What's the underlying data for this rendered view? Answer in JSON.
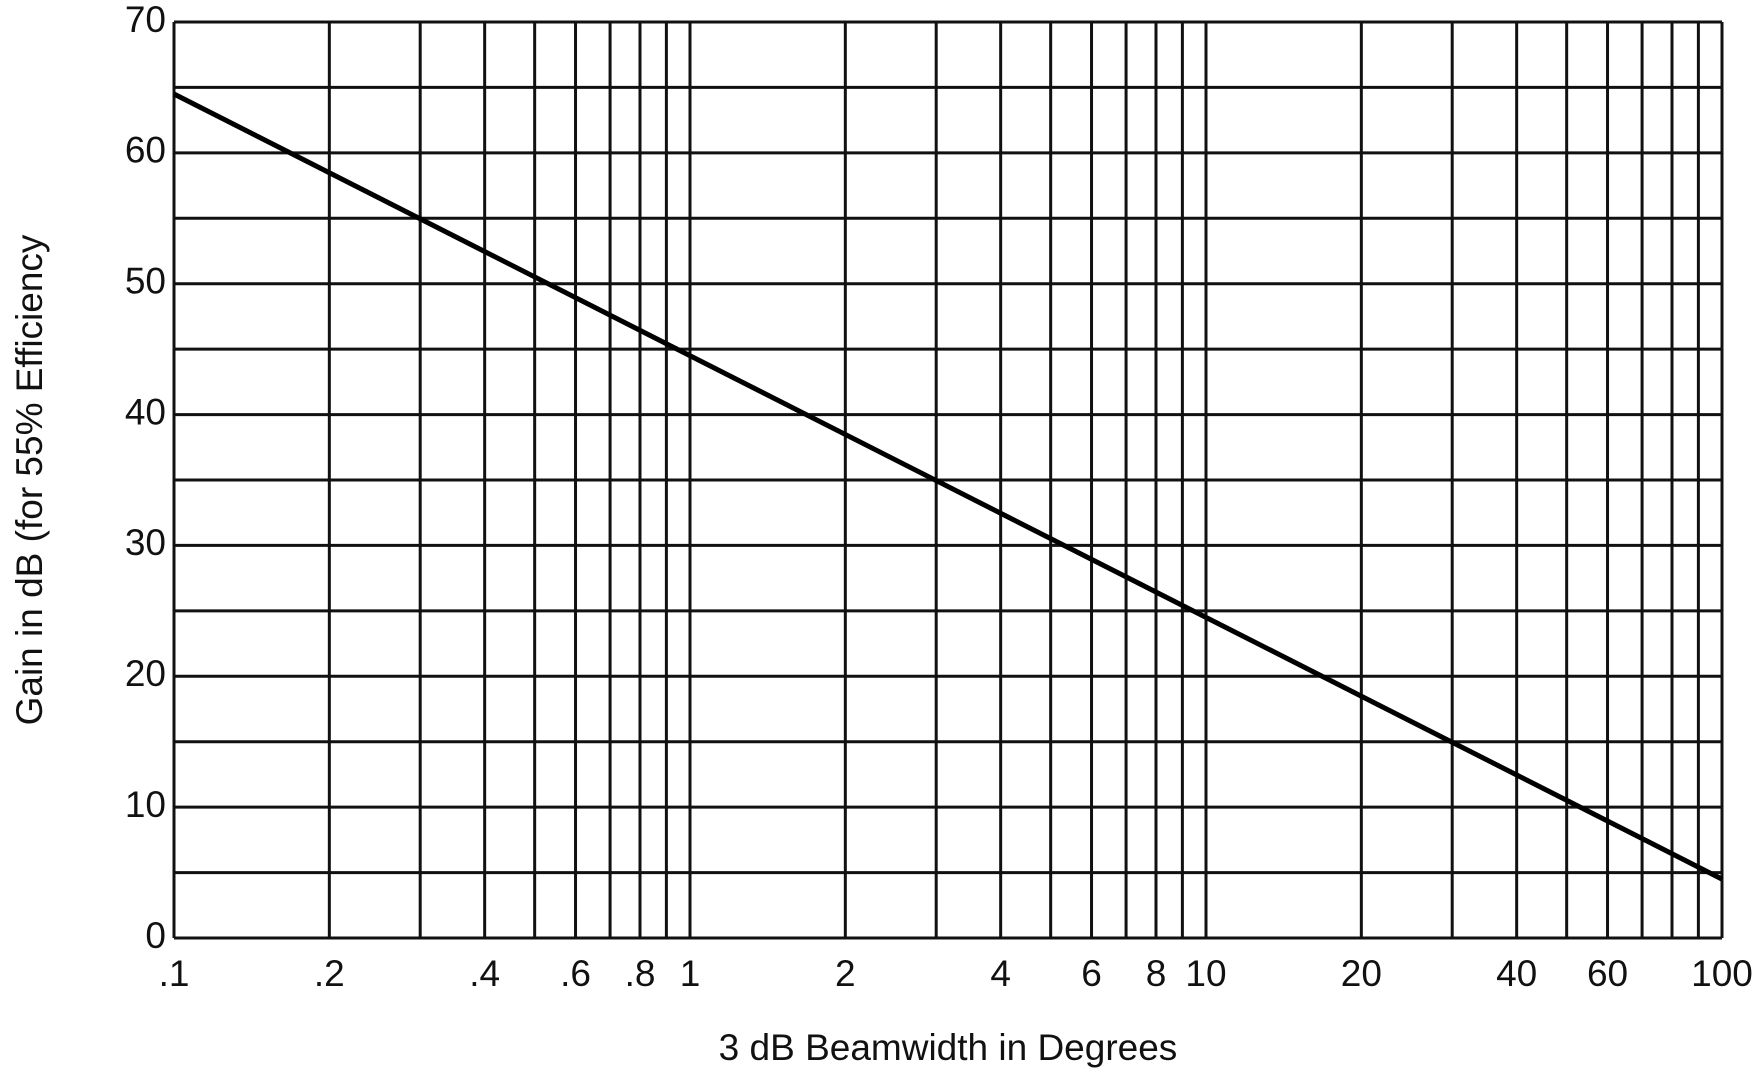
{
  "chart_data": {
    "type": "line",
    "xlabel": "3 dB Beamwidth in Degrees",
    "ylabel": "Gain in dB (for 55% Efficiency",
    "xscale": "log",
    "xlim": [
      0.1,
      100
    ],
    "ylim": [
      0,
      70
    ],
    "xticks": [
      {
        "value": 0.1,
        "label": ".1"
      },
      {
        "value": 0.2,
        "label": ".2"
      },
      {
        "value": 0.4,
        "label": ".4"
      },
      {
        "value": 0.6,
        "label": ".6"
      },
      {
        "value": 0.8,
        "label": ".8"
      },
      1,
      2,
      4,
      6,
      8,
      10,
      20,
      40,
      60,
      100
    ],
    "xminor": [
      0.3,
      0.5,
      0.7,
      0.9,
      3,
      5,
      7,
      9,
      30,
      50,
      70,
      80,
      90
    ],
    "yticks": [
      0,
      10,
      20,
      30,
      40,
      50,
      60,
      70
    ],
    "yminor": [
      5,
      15,
      25,
      35,
      45,
      55,
      65
    ],
    "grid": true,
    "series": [
      {
        "color": "#000000",
        "x": [
          0.1,
          100
        ],
        "values": [
          64.5,
          4.5
        ]
      }
    ]
  }
}
